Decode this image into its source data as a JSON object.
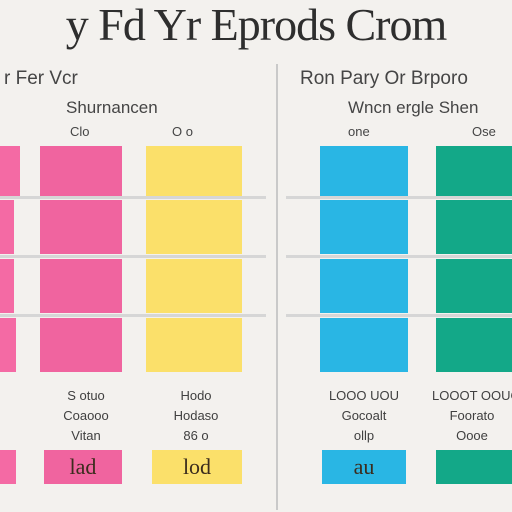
{
  "title": "y Fd Yr Eprods Crom",
  "left_panel": {
    "heading": "r Fer Vcr",
    "subheading": "Shurnancen",
    "col_labels": [
      "Clo",
      "O o"
    ],
    "footer": {
      "col1_lines": [
        "S otuo",
        "Coaooo",
        "Vitan"
      ],
      "col2_lines": [
        "Hodo",
        "Hodaso",
        "86 o"
      ]
    },
    "chips": [
      "",
      "lad",
      "lod"
    ]
  },
  "right_panel": {
    "heading": "Ron Pary Or Brporo",
    "subheading": "Wncn ergle Shen",
    "col_labels": [
      "one",
      "Ose"
    ],
    "footer": {
      "col1_lines": [
        "LOOO UOU",
        "Gocoalt",
        "ollp"
      ],
      "col2_lines": [
        "LOOOT OOUO",
        "Foorato",
        "Oooe"
      ]
    },
    "chips": [
      "au",
      ""
    ]
  },
  "colors": {
    "pink": "#f46aa4",
    "magenta": "#f0649f",
    "yellow": "#fbe06a",
    "blue": "#29b6e4",
    "teal": "#13a888",
    "background": "#f3f1ee"
  }
}
